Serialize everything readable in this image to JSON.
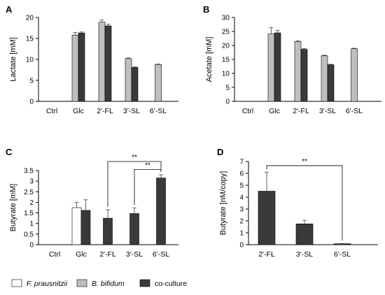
{
  "legend": {
    "placement": "bottom",
    "entries": [
      {
        "label": "F. prausnitzii",
        "color": "#ffffff",
        "italic": true
      },
      {
        "label": "B. bifidum",
        "color": "#bfbfbf",
        "italic": true
      },
      {
        "label": "co-culture",
        "color": "#3a3a3a",
        "italic": false
      }
    ]
  },
  "chart_data": [
    {
      "panel": "A",
      "type": "bar",
      "ylabel": "Lactate [mM]",
      "xlabel": "",
      "ylim": [
        0,
        20
      ],
      "yticks": [
        0,
        5,
        10,
        15,
        20
      ],
      "categories": [
        "Ctrl",
        "Glc",
        "2'-FL",
        "3'-SL",
        "6'-SL"
      ],
      "series": [
        {
          "name": "B. bifidum",
          "color": "#bfbfbf",
          "values": [
            null,
            15.8,
            18.9,
            10.2,
            8.8
          ],
          "errors": [
            null,
            0.6,
            0.5,
            0.15,
            0.1
          ]
        },
        {
          "name": "co-culture",
          "color": "#3a3a3a",
          "values": [
            null,
            16.3,
            18.0,
            8.1,
            null
          ],
          "errors": [
            null,
            0.25,
            0.4,
            0.1,
            null
          ]
        }
      ],
      "brackets": []
    },
    {
      "panel": "B",
      "type": "bar",
      "ylabel": "Acetate [mM]",
      "xlabel": "",
      "ylim": [
        0,
        30
      ],
      "yticks": [
        0,
        5,
        10,
        15,
        20,
        25,
        30
      ],
      "categories": [
        "Ctrl",
        "Glc",
        "2'-FL",
        "3'-SL",
        "6'-SL"
      ],
      "series": [
        {
          "name": "B. bifidum",
          "color": "#bfbfbf",
          "values": [
            null,
            24.1,
            21.4,
            16.3,
            18.8
          ],
          "errors": [
            null,
            2.3,
            0.3,
            0.2,
            0.2
          ]
        },
        {
          "name": "co-culture",
          "color": "#3a3a3a",
          "values": [
            null,
            24.5,
            18.6,
            13.1,
            null
          ],
          "errors": [
            null,
            0.9,
            0.3,
            0.15,
            null
          ]
        }
      ],
      "brackets": []
    },
    {
      "panel": "C",
      "type": "bar",
      "ylabel": "Butyrate [mM]",
      "xlabel": "",
      "ylim": [
        0,
        3.5
      ],
      "yticks": [
        0,
        0.5,
        1,
        1.5,
        2,
        2.5,
        3,
        3.5
      ],
      "categories": [
        "Ctrl",
        "Glc",
        "2'-FL",
        "3'-SL",
        "6'-SL"
      ],
      "series": [
        {
          "name": "F. prausnitzii",
          "color": "#ffffff",
          "values": [
            null,
            1.75,
            null,
            null,
            null
          ],
          "errors": [
            null,
            0.25,
            null,
            null,
            null
          ]
        },
        {
          "name": "co-culture",
          "color": "#3a3a3a",
          "values": [
            null,
            1.62,
            1.25,
            1.47,
            3.15
          ],
          "errors": [
            null,
            0.5,
            0.4,
            0.27,
            0.15
          ]
        }
      ],
      "brackets": [
        {
          "from": 2,
          "to": 4,
          "level": 3.93,
          "label": "**"
        },
        {
          "from": 3,
          "to": 4,
          "level": 3.55,
          "label": "**"
        }
      ]
    },
    {
      "panel": "D",
      "type": "bar",
      "ylabel": "Butyrate [nM/copy]",
      "xlabel": "",
      "ylim": [
        0,
        7
      ],
      "yticks": [
        0,
        1,
        2,
        3,
        4,
        5,
        6,
        7
      ],
      "categories": [
        "2'-FL",
        "3'-SL",
        "6'-SL"
      ],
      "series": [
        {
          "name": "co-culture",
          "color": "#3a3a3a",
          "values": [
            4.5,
            1.75,
            0.08
          ],
          "errors": [
            1.6,
            0.3,
            0.02
          ]
        }
      ],
      "brackets": [
        {
          "from": 0,
          "to": 2,
          "level": 6.65,
          "label": "**"
        }
      ]
    }
  ]
}
